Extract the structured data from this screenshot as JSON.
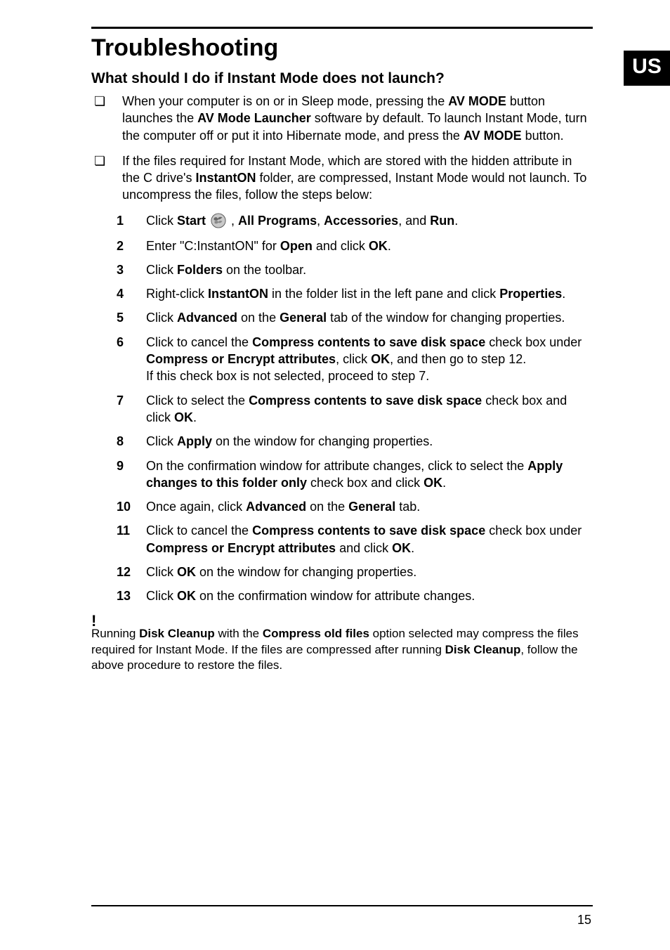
{
  "badge": "US",
  "title": "Troubleshooting",
  "subtitle": "What should I do if Instant Mode does not launch?",
  "bullets": [
    {
      "html": "When your computer is on or in Sleep mode, pressing the <b>AV MODE</b> button launches the <b>AV Mode Launcher</b> software by default. To launch Instant Mode, turn the computer off or put it into Hibernate mode, and press the <b>AV MODE</b> button."
    },
    {
      "html": "If the files required for Instant Mode, which are stored with the hidden attribute in the C drive's <b>InstantON</b> folder, are compressed, Instant Mode would not launch. To uncompress the files, follow the steps below:"
    }
  ],
  "steps": [
    {
      "n": "1",
      "html": "Click <b>Start</b> <svg class='start-icon' viewBox='0 0 24 24'><circle cx='12' cy='12' r='11' fill='#c9c9c9' stroke='#555' stroke-width='1'/><path d='M5 8 Q9 5 11 9 Q13 5 18 7 Q14 11 12 10 Q10 13 5 11 Z' fill='#666'/><path d='M6 13 Q10 11 12 14 Q14 11 18 13 Q15 17 12 15 Q9 18 6 16 Z' fill='#888'/></svg> , <b>All Programs</b>, <b>Accessories</b>, and <b>Run</b>."
    },
    {
      "n": "2",
      "html": "Enter \"C:InstantON\" for <b>Open</b> and click <b>OK</b>."
    },
    {
      "n": "3",
      "html": "Click <b>Folders</b> on the toolbar."
    },
    {
      "n": "4",
      "html": "Right-click <b>InstantON</b> in the folder list in the left pane and click <b>Properties</b>."
    },
    {
      "n": "5",
      "html": "Click <b>Advanced</b> on the <b>General</b> tab of the window for changing properties."
    },
    {
      "n": "6",
      "html": "Click to cancel the <b>Compress contents to save disk space</b> check box under <b>Compress or Encrypt attributes</b>, click <b>OK</b>, and then go to step 12.<br>If this check box is not selected, proceed to step 7."
    },
    {
      "n": "7",
      "html": "Click to select the <b>Compress contents to save disk space</b> check box and click <b>OK</b>."
    },
    {
      "n": "8",
      "html": "Click <b>Apply</b> on the window for changing properties."
    },
    {
      "n": "9",
      "html": "On the confirmation window for attribute changes, click to select the <b>Apply changes to this folder only</b> check box and click <b>OK</b>."
    },
    {
      "n": "10",
      "html": "Once again, click <b>Advanced</b> on the <b>General</b> tab."
    },
    {
      "n": "11",
      "html": "Click to cancel the <b>Compress contents to save disk space</b> check box under <b>Compress or Encrypt attributes</b> and click <b>OK</b>."
    },
    {
      "n": "12",
      "html": "Click <b>OK</b> on the window for changing properties."
    },
    {
      "n": "13",
      "html": "Click <b>OK</b> on the confirmation window for attribute changes."
    }
  ],
  "note_mark": "!",
  "note": {
    "html": "Running <b>Disk Cleanup</b> with the <b>Compress old files</b> option selected may compress the files required for Instant Mode. If the files are compressed after running <b>Disk Cleanup</b>, follow the above procedure to restore the files."
  },
  "page_number": "15"
}
